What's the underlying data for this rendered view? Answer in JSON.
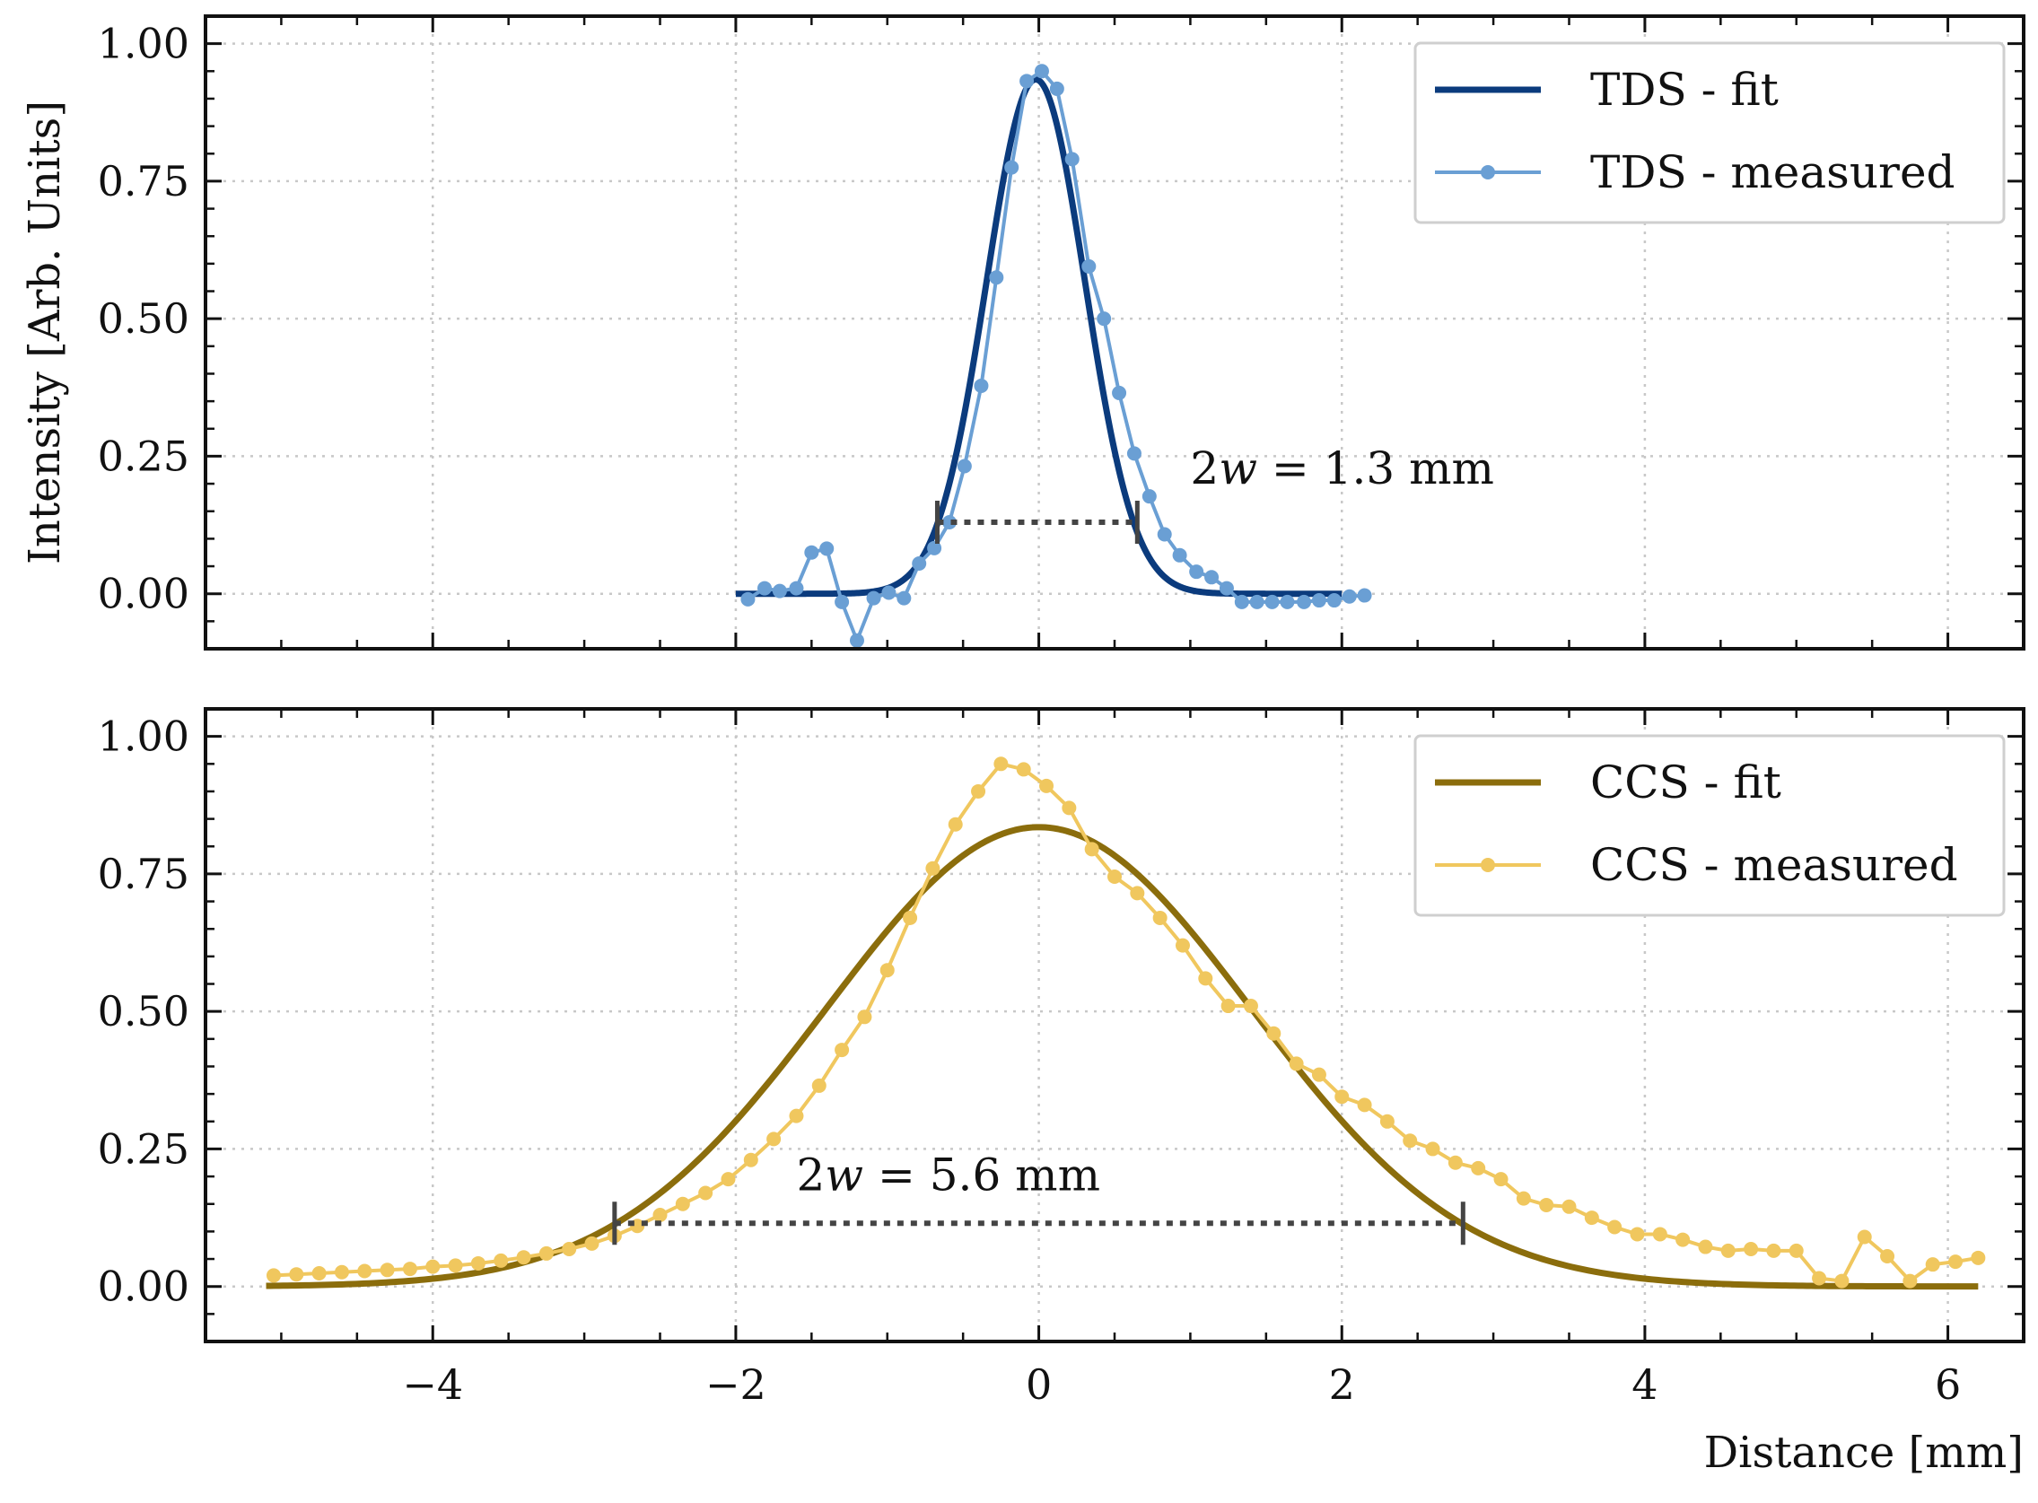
{
  "chart_data": [
    {
      "type": "line",
      "panel": "top",
      "ylabel": "Intensity [Arb. Units]",
      "xlabel": "",
      "xlim": [
        -5.5,
        6.5
      ],
      "ylim": [
        -0.1,
        1.05
      ],
      "xticks": [
        -4,
        -2,
        0,
        2,
        4,
        6
      ],
      "xtick_labels": [
        "",
        "",
        "",
        "",
        "",
        ""
      ],
      "yticks": [
        0.0,
        0.25,
        0.5,
        0.75,
        1.0
      ],
      "ytick_labels": [
        "0.00",
        "0.25",
        "0.50",
        "0.75",
        "1.00"
      ],
      "grid": true,
      "legend_position": "top-right",
      "series": [
        {
          "name": "TDS - fit",
          "kind": "gaussian",
          "color": "#0b3b7d",
          "amplitude": 0.935,
          "center": -0.02,
          "width_w": 0.65,
          "x_range": [
            -2.0,
            2.0
          ]
        },
        {
          "name": "TDS - measured",
          "kind": "markers-line",
          "color": "#6a9fd4",
          "x": [
            -1.92,
            -1.81,
            -1.71,
            -1.6,
            -1.5,
            -1.4,
            -1.3,
            -1.2,
            -1.09,
            -0.99,
            -0.89,
            -0.79,
            -0.69,
            -0.59,
            -0.49,
            -0.38,
            -0.28,
            -0.18,
            -0.08,
            0.02,
            0.12,
            0.22,
            0.33,
            0.43,
            0.53,
            0.63,
            0.73,
            0.83,
            0.93,
            1.04,
            1.14,
            1.24,
            1.34,
            1.44,
            1.54,
            1.64,
            1.75,
            1.85,
            1.95,
            2.05,
            2.15
          ],
          "y": [
            -0.01,
            0.01,
            0.005,
            0.01,
            0.075,
            0.082,
            -0.015,
            -0.085,
            -0.008,
            0.002,
            -0.008,
            0.055,
            0.083,
            0.13,
            0.232,
            0.378,
            0.575,
            0.775,
            0.932,
            0.95,
            0.918,
            0.79,
            0.595,
            0.5,
            0.365,
            0.255,
            0.177,
            0.108,
            0.07,
            0.04,
            0.03,
            0.01,
            -0.015,
            -0.015,
            -0.015,
            -0.015,
            -0.015,
            -0.012,
            -0.012,
            -0.005,
            -0.003
          ]
        }
      ],
      "annotations": [
        {
          "prefix": "2",
          "var": "w",
          "rest": " = 1.3 mm",
          "x": 1.0,
          "y": 0.2
        },
        {
          "type": "width-bar",
          "x1": -0.67,
          "x2": 0.65,
          "y": 0.13
        }
      ]
    },
    {
      "type": "line",
      "panel": "bottom",
      "ylabel": "",
      "xlabel": "Distance [mm]",
      "xlim": [
        -5.5,
        6.5
      ],
      "ylim": [
        -0.1,
        1.05
      ],
      "xticks": [
        -4,
        -2,
        0,
        2,
        4,
        6
      ],
      "xtick_labels": [
        "−4",
        "−2",
        "0",
        "2",
        "4",
        "6"
      ],
      "yticks": [
        0.0,
        0.25,
        0.5,
        0.75,
        1.0
      ],
      "ytick_labels": [
        "0.00",
        "0.25",
        "0.50",
        "0.75",
        "1.00"
      ],
      "grid": true,
      "legend_position": "top-right",
      "series": [
        {
          "name": "CCS - fit",
          "kind": "gaussian",
          "color": "#8b6d0c",
          "amplitude": 0.835,
          "center": 0.0,
          "width_w": 2.8,
          "x_range": [
            -5.1,
            6.2
          ]
        },
        {
          "name": "CCS - measured",
          "kind": "markers-line",
          "color": "#f0c75e",
          "x": [
            -5.05,
            -4.9,
            -4.75,
            -4.6,
            -4.45,
            -4.3,
            -4.15,
            -4.0,
            -3.85,
            -3.7,
            -3.55,
            -3.4,
            -3.25,
            -3.1,
            -2.95,
            -2.8,
            -2.65,
            -2.5,
            -2.35,
            -2.2,
            -2.05,
            -1.9,
            -1.75,
            -1.6,
            -1.45,
            -1.3,
            -1.15,
            -1.0,
            -0.85,
            -0.7,
            -0.55,
            -0.4,
            -0.25,
            -0.1,
            0.05,
            0.2,
            0.35,
            0.5,
            0.65,
            0.8,
            0.95,
            1.1,
            1.25,
            1.4,
            1.55,
            1.7,
            1.85,
            2.0,
            2.15,
            2.3,
            2.45,
            2.6,
            2.75,
            2.9,
            3.05,
            3.2,
            3.35,
            3.5,
            3.65,
            3.8,
            3.95,
            4.1,
            4.25,
            4.4,
            4.55,
            4.7,
            4.85,
            5.0,
            5.15,
            5.3,
            5.45,
            5.6,
            5.75,
            5.9,
            6.05,
            6.2
          ],
          "y": [
            0.02,
            0.022,
            0.024,
            0.026,
            0.028,
            0.03,
            0.032,
            0.036,
            0.038,
            0.042,
            0.047,
            0.053,
            0.06,
            0.068,
            0.078,
            0.092,
            0.11,
            0.13,
            0.15,
            0.17,
            0.195,
            0.23,
            0.268,
            0.31,
            0.365,
            0.43,
            0.49,
            0.575,
            0.67,
            0.76,
            0.84,
            0.9,
            0.95,
            0.94,
            0.91,
            0.87,
            0.795,
            0.745,
            0.715,
            0.67,
            0.62,
            0.56,
            0.51,
            0.51,
            0.46,
            0.405,
            0.385,
            0.345,
            0.33,
            0.3,
            0.265,
            0.25,
            0.225,
            0.215,
            0.195,
            0.16,
            0.148,
            0.145,
            0.125,
            0.108,
            0.095,
            0.095,
            0.085,
            0.072,
            0.065,
            0.068,
            0.065,
            0.065,
            0.015,
            0.01,
            0.09,
            0.055,
            0.01,
            0.04,
            0.045,
            0.052
          ]
        }
      ],
      "annotations": [
        {
          "prefix": "2",
          "var": "w",
          "rest": " = 5.6 mm",
          "x": -1.6,
          "y": 0.175
        },
        {
          "type": "width-bar",
          "x1": -2.8,
          "x2": 2.8,
          "y": 0.115
        }
      ]
    }
  ],
  "colors": {
    "axis": "#111111",
    "grid": "#c8c8c8",
    "bar": "#444444",
    "legend_border": "#cfcfcf"
  }
}
